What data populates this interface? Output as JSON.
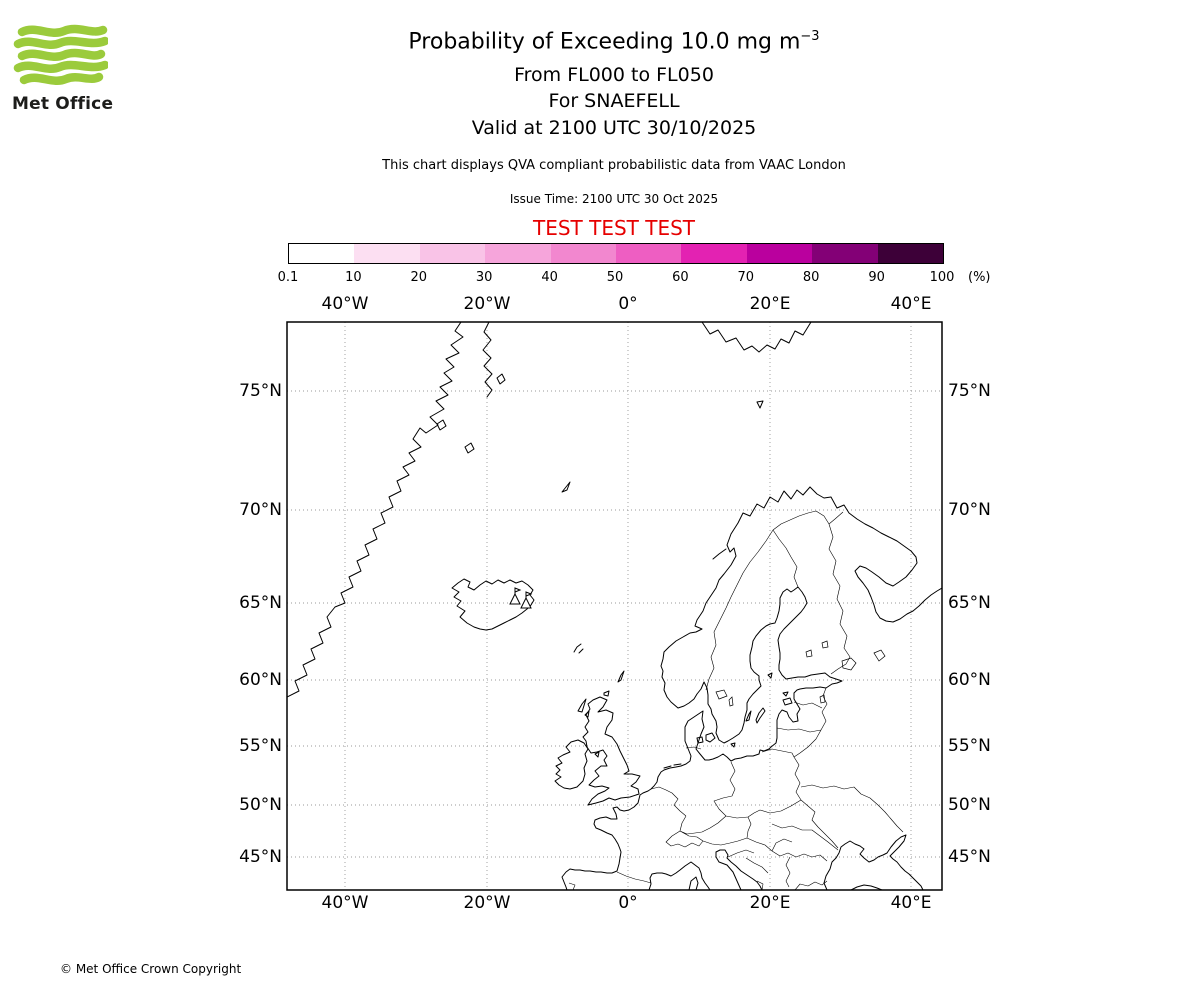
{
  "logo": {
    "brand": "Met Office"
  },
  "header": {
    "title_main": "Probability of Exceeding 10.0 mg m",
    "title_sup": "−3",
    "line_flight_levels": "From FL000 to FL050",
    "line_volcano": "For SNAEFELL",
    "line_valid": "Valid at 2100 UTC 30/10/2025",
    "description": "This chart displays QVA compliant probabilistic data from VAAC London",
    "issue_time": "Issue Time: 2100 UTC 30 Oct 2025",
    "test_banner": "TEST TEST TEST"
  },
  "colorbar": {
    "unit_label": "(%)",
    "tick_labels": [
      "0.1",
      "10",
      "20",
      "30",
      "40",
      "50",
      "60",
      "70",
      "80",
      "90",
      "100"
    ],
    "segment_colors": [
      "#ffffff",
      "#fcdff2",
      "#f9c3e7",
      "#f6a5db",
      "#f287cf",
      "#ee5ec2",
      "#e322b2",
      "#ba009e",
      "#830076",
      "#3d0038"
    ]
  },
  "map": {
    "x_tick_labels": [
      "40°W",
      "20°W",
      "0°",
      "20°E",
      "40°E"
    ],
    "y_tick_labels": [
      "75°N",
      "70°N",
      "65°N",
      "60°N",
      "55°N",
      "50°N",
      "45°N"
    ]
  },
  "colors": {
    "test_text": "#e60000",
    "logo_green": "#9bcb3c",
    "grid_gray": "#999999"
  },
  "footer": {
    "copyright_text": "© Met Office Crown Copyright"
  }
}
